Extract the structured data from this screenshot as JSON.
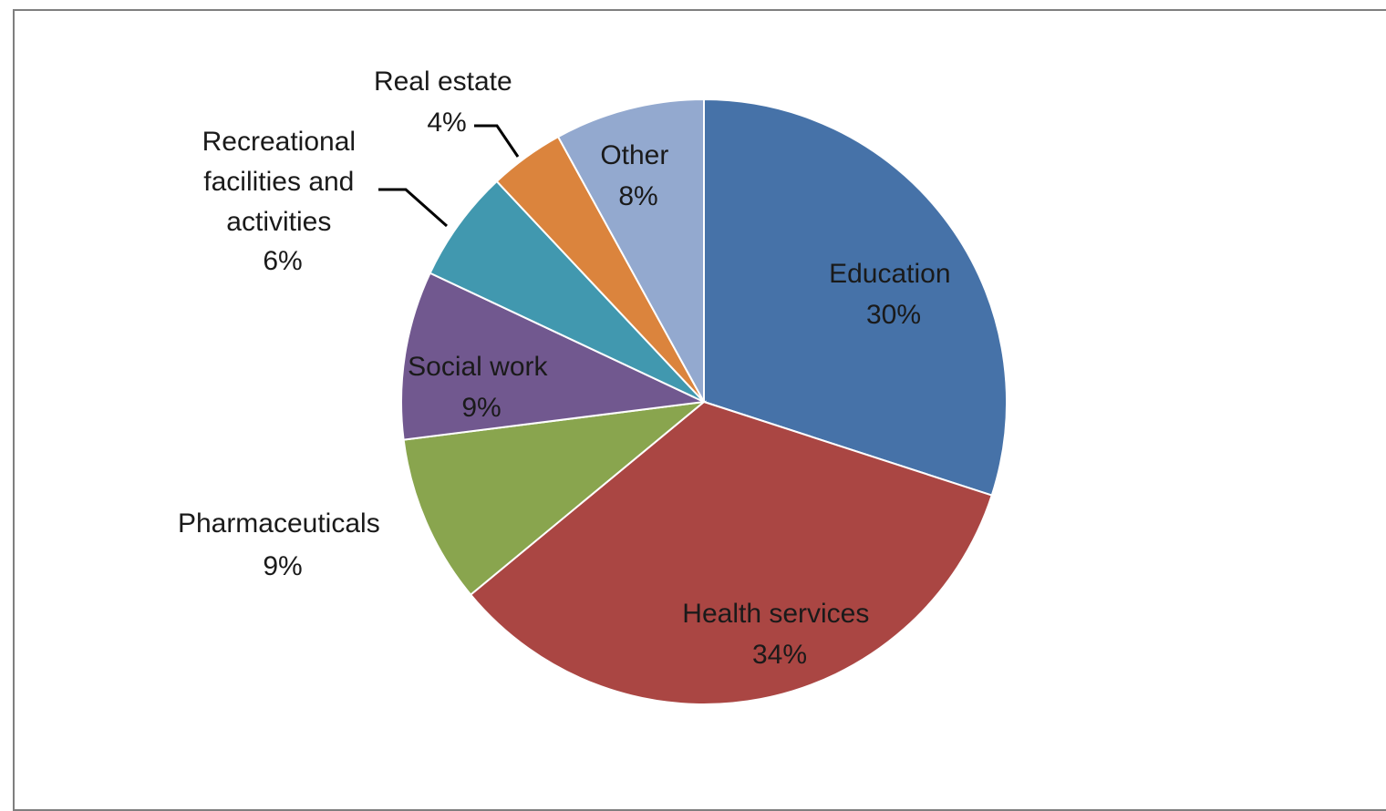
{
  "chart_data": {
    "type": "pie",
    "start_angle_deg": 0,
    "direction": "clockwise",
    "slices": [
      {
        "label": "Education",
        "value": 30,
        "pct_label": "30%",
        "color": "#4672A8"
      },
      {
        "label": "Health services",
        "value": 34,
        "pct_label": "34%",
        "color": "#AA4643"
      },
      {
        "label": "Pharmaceuticals",
        "value": 9,
        "pct_label": "9%",
        "color": "#89A54E"
      },
      {
        "label": "Social work",
        "value": 9,
        "pct_label": "9%",
        "color": "#71588F"
      },
      {
        "label": "Recreational facilities and activities",
        "label_lines": [
          "Recreational",
          "facilities and",
          "activities"
        ],
        "value": 6,
        "pct_label": "6%",
        "color": "#4198AF"
      },
      {
        "label": "Real estate",
        "value": 4,
        "pct_label": "4%",
        "color": "#DB843D"
      },
      {
        "label": "Other",
        "value": 8,
        "pct_label": "8%",
        "color": "#93A9CF"
      }
    ]
  }
}
